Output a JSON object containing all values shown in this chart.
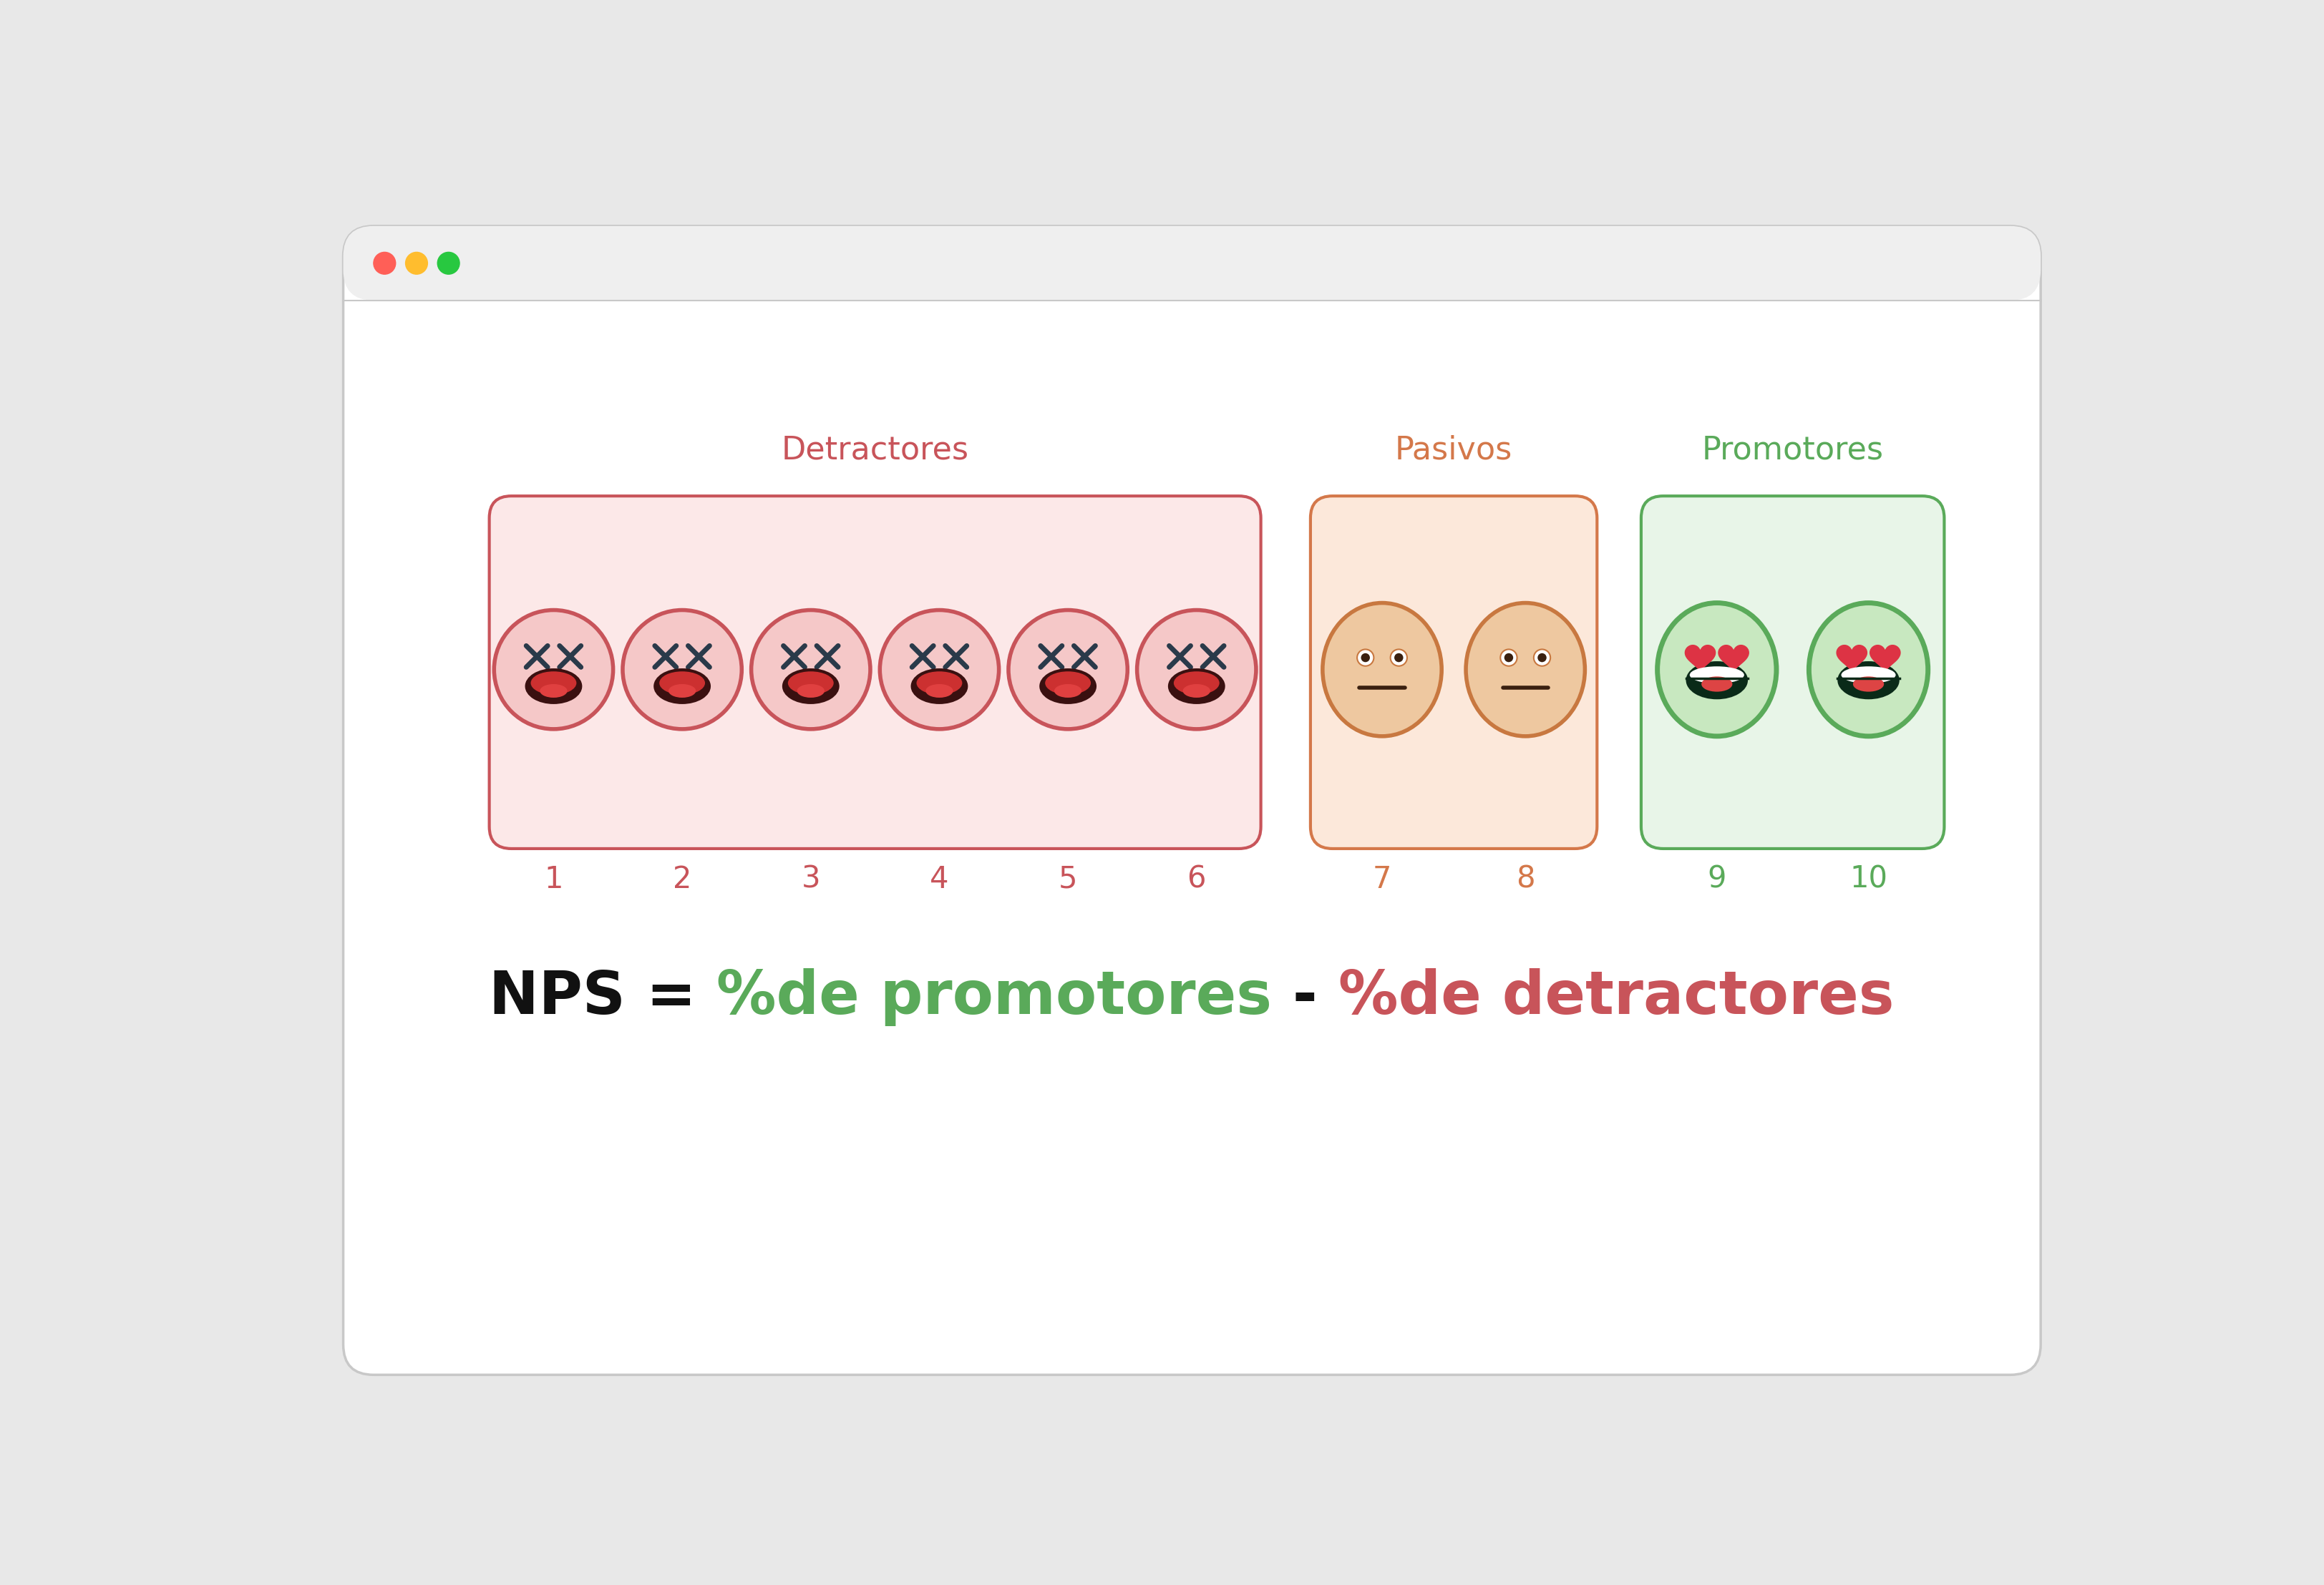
{
  "bg_color": "#e8e8e8",
  "window_bg": "#ffffff",
  "title_detractores": "Detractores",
  "title_pasivos": "Pasivos",
  "title_promotores": "Promotores",
  "color_detractores": "#c8545a",
  "color_pasivos": "#d4784a",
  "color_promotores": "#5aaa5a",
  "box_detractores_fill": "#fce8e8",
  "box_pasivos_fill": "#fce8da",
  "box_promotores_fill": "#e8f5e8",
  "box_detractores_border": "#c8545a",
  "box_pasivos_border": "#d4784a",
  "box_promotores_border": "#5aaa5a",
  "numbers_detractores": [
    "1",
    "2",
    "3",
    "4",
    "5",
    "6"
  ],
  "numbers_pasivos": [
    "7",
    "8"
  ],
  "numbers_promotores": [
    "9",
    "10"
  ],
  "nps_fontsize": 60,
  "label_fontsize": 32,
  "number_fontsize": 30,
  "face_color_detractor": "#f5c8c8",
  "face_border_detractor": "#c8545a",
  "face_color_pasivo": "#eec8a0",
  "face_border_pasivo": "#c87840",
  "face_color_promotor": "#c8e8c0",
  "face_border_promotor": "#5aaa5a",
  "window_dot_red": "#ff5f57",
  "window_dot_yellow": "#ffbd2e",
  "window_dot_green": "#28c840",
  "eye_color_detractor": "#2a3a4a",
  "eye_color_pasivo": "#3a2010",
  "mouth_dark": "#3a1010",
  "mouth_red": "#cc3030",
  "tongue_color": "#e04040",
  "promotor_mouth_dark": "#0a2a18",
  "promotor_teeth": "#ffffff",
  "promotor_tongue": "#dd4444",
  "heart_color": "#dd3344"
}
